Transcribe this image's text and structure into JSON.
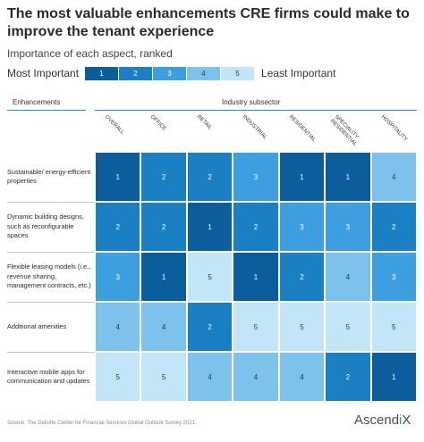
{
  "title": "The most valuable enhancements CRE firms could make to improve the tenant experience",
  "subtitle": "Importance of each aspect, ranked",
  "legend": {
    "low_label": "Most Important",
    "high_label": "Least Important",
    "keys": [
      "1",
      "2",
      "3",
      "4",
      "5"
    ]
  },
  "headers": {
    "rows": "Enhancements",
    "columns": "Industry subsector"
  },
  "colors": {
    "1": "#0b5e9b",
    "2": "#1b7fc4",
    "3": "#3d9fe0",
    "4": "#7cc2ed",
    "5": "#c3e5f8",
    "accent": "#2e8fd1",
    "text_dark_bg": "#ffffff",
    "text_light_bg": "#1f3a4d"
  },
  "chart_data": {
    "type": "heatmap",
    "title": "The most valuable enhancements CRE firms could make to improve the tenant experience",
    "subtitle": "Importance of each aspect, ranked",
    "columns": [
      "OVERALL",
      "OFFICE",
      "RETAIL",
      "INDUSTRIAL",
      "RESIDENTIAL",
      "SPECIALITY RESIDENTIAL",
      "HOSPITALITY"
    ],
    "rows": [
      "Sustainable/ energy-efficient properties",
      "Dynamic building designs, such as reconfigurable spaces",
      "Flexible leasing models (i.e., revenue sharing, management contracts, etc.)",
      "Additional amenities",
      "Interactive mobile apps for communication and updates"
    ],
    "values": [
      [
        1,
        2,
        2,
        3,
        1,
        1,
        4
      ],
      [
        2,
        2,
        1,
        2,
        3,
        3,
        2
      ],
      [
        3,
        1,
        5,
        1,
        2,
        4,
        3
      ],
      [
        4,
        4,
        2,
        5,
        5,
        5,
        5
      ],
      [
        5,
        5,
        4,
        4,
        4,
        2,
        1
      ]
    ],
    "scale": {
      "min": 1,
      "max": 5,
      "min_label": "Most Important",
      "max_label": "Least Important"
    }
  },
  "source": "Source: The Deloitte Center for Financial Services Global Outlook Survey 2021.",
  "logo": {
    "text_before": "Ascend",
    "text_accent": "i",
    "text_after": "X"
  }
}
